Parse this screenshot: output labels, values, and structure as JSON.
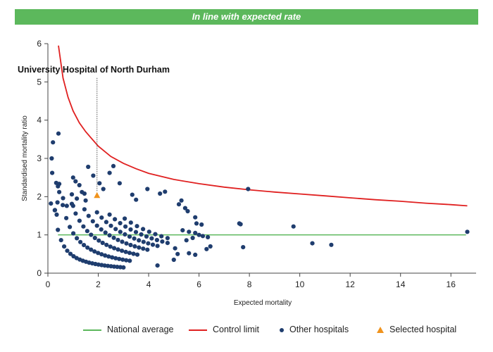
{
  "banner": {
    "text": "In line with expected rate",
    "color": "#5cb85c"
  },
  "chart_data": {
    "type": "scatter",
    "subtype": "funnel plot",
    "xlabel": "Expected mortality",
    "ylabel": "Standardised mortality ratio",
    "xlim": [
      0,
      17
    ],
    "ylim": [
      0,
      6
    ],
    "xticks": [
      0,
      2,
      4,
      6,
      8,
      10,
      12,
      14,
      16
    ],
    "yticks": [
      0,
      1,
      2,
      3,
      4,
      5,
      6
    ],
    "grid": false,
    "legend_position": "bottom",
    "national_average": {
      "name": "National average",
      "y": 1,
      "x_range": [
        0.4,
        16.6
      ],
      "color": "#5cb85c"
    },
    "control_limit": {
      "name": "Control limit",
      "color": "#e02020",
      "points": [
        [
          0.42,
          5.95
        ],
        [
          0.6,
          5.1
        ],
        [
          0.8,
          4.6
        ],
        [
          1.0,
          4.24
        ],
        [
          1.25,
          3.93
        ],
        [
          1.5,
          3.7
        ],
        [
          2.0,
          3.32
        ],
        [
          2.5,
          3.05
        ],
        [
          3.0,
          2.87
        ],
        [
          3.5,
          2.73
        ],
        [
          4.0,
          2.61
        ],
        [
          5.0,
          2.45
        ],
        [
          6.0,
          2.34
        ],
        [
          7.0,
          2.25
        ],
        [
          8.0,
          2.18
        ],
        [
          9.0,
          2.12
        ],
        [
          10.0,
          2.07
        ],
        [
          11.0,
          2.02
        ],
        [
          12.0,
          1.97
        ],
        [
          13.0,
          1.92
        ],
        [
          14.0,
          1.88
        ],
        [
          15.0,
          1.83
        ],
        [
          16.0,
          1.79
        ],
        [
          16.65,
          1.76
        ]
      ]
    },
    "selected_hospital": {
      "name": "Selected hospital",
      "label": "University Hospital of North Durham",
      "x": 1.95,
      "y": 2.03,
      "color": "#f0931d"
    },
    "other_hospitals": {
      "name": "Other hospitals",
      "color": "#1f3d6e",
      "points": [
        [
          0.2,
          3.42
        ],
        [
          0.42,
          3.65
        ],
        [
          0.17,
          2.62
        ],
        [
          0.33,
          2.36
        ],
        [
          0.4,
          2.27
        ],
        [
          0.45,
          2.12
        ],
        [
          0.6,
          1.96
        ],
        [
          0.38,
          1.85
        ],
        [
          0.12,
          1.82
        ],
        [
          0.28,
          1.65
        ],
        [
          0.75,
          1.76
        ],
        [
          0.35,
          1.53
        ],
        [
          1.0,
          2.5
        ],
        [
          1.1,
          2.4
        ],
        [
          1.25,
          2.3
        ],
        [
          1.35,
          2.12
        ],
        [
          1.45,
          2.08
        ],
        [
          0.95,
          2.06
        ],
        [
          1.15,
          1.95
        ],
        [
          1.5,
          1.9
        ],
        [
          1.0,
          1.76
        ],
        [
          1.6,
          2.78
        ],
        [
          1.8,
          2.55
        ],
        [
          2.6,
          2.8
        ],
        [
          2.45,
          2.62
        ],
        [
          2.05,
          2.35
        ],
        [
          2.2,
          2.2
        ],
        [
          2.85,
          2.35
        ],
        [
          3.35,
          2.05
        ],
        [
          3.5,
          1.92
        ],
        [
          3.95,
          2.2
        ],
        [
          4.45,
          2.08
        ],
        [
          4.65,
          2.13
        ],
        [
          5.3,
          1.9
        ],
        [
          5.2,
          1.8
        ],
        [
          7.95,
          2.2
        ],
        [
          5.45,
          1.7
        ],
        [
          5.55,
          1.62
        ],
        [
          5.85,
          1.46
        ],
        [
          5.9,
          1.3
        ],
        [
          6.1,
          1.27
        ],
        [
          5.35,
          1.12
        ],
        [
          5.6,
          1.08
        ],
        [
          5.85,
          1.05
        ],
        [
          6.0,
          1.0
        ],
        [
          6.15,
          0.97
        ],
        [
          5.75,
          0.92
        ],
        [
          6.35,
          0.94
        ],
        [
          5.5,
          0.86
        ],
        [
          6.45,
          0.7
        ],
        [
          6.3,
          0.63
        ],
        [
          5.05,
          0.65
        ],
        [
          5.15,
          0.5
        ],
        [
          5.6,
          0.52
        ],
        [
          5.85,
          0.48
        ],
        [
          5.0,
          0.35
        ],
        [
          4.35,
          0.2
        ],
        [
          7.6,
          1.3
        ],
        [
          7.65,
          1.28
        ],
        [
          7.75,
          0.68
        ],
        [
          9.75,
          1.22
        ],
        [
          10.5,
          0.78
        ],
        [
          11.25,
          0.74
        ],
        [
          16.65,
          1.08
        ]
      ],
      "arcs": [
        {
          "c": 0.45,
          "x_start": 0.15,
          "x_end": 3.0,
          "n": 24
        },
        {
          "c": 1.05,
          "x_start": 0.45,
          "x_end": 3.25,
          "n": 21
        },
        {
          "c": 1.72,
          "x_start": 0.95,
          "x_end": 3.55,
          "n": 18
        },
        {
          "c": 2.42,
          "x_start": 1.45,
          "x_end": 3.95,
          "n": 16
        },
        {
          "c": 3.1,
          "x_start": 1.95,
          "x_end": 4.35,
          "n": 14
        },
        {
          "c": 3.75,
          "x_start": 2.45,
          "x_end": 4.75,
          "n": 12
        },
        {
          "c": 4.35,
          "x_start": 3.05,
          "x_end": 4.75,
          "n": 8
        }
      ]
    }
  },
  "legend": {
    "items": [
      {
        "label": "National average",
        "symbol": "line",
        "color": "#5cb85c"
      },
      {
        "label": "Control limit",
        "symbol": "line",
        "color": "#e02020"
      },
      {
        "label": "Other hospitals",
        "symbol": "dot",
        "color": "#1f3d6e"
      },
      {
        "label": "Selected hospital",
        "symbol": "triangle",
        "color": "#f0931d"
      }
    ]
  }
}
